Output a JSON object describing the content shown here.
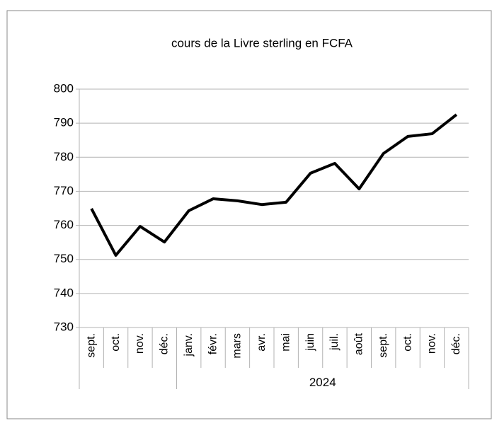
{
  "chart_data": {
    "type": "line",
    "title": "cours de la Livre sterling en FCFA",
    "categories": [
      "sept.",
      "oct.",
      "nov.",
      "déc.",
      "janv.",
      "févr.",
      "mars",
      "avr.",
      "mai",
      "juin",
      "juil.",
      "août",
      "sept.",
      "oct.",
      "nov.",
      "déc."
    ],
    "category_groups": [
      null,
      null,
      null,
      null,
      "2024",
      "2024",
      "2024",
      "2024",
      "2024",
      "2024",
      "2024",
      "2024",
      "2024",
      "2024",
      "2024",
      "2024"
    ],
    "series": [
      {
        "name": "cours",
        "color": "#000000",
        "values": [
          764.9,
          751.2,
          759.7,
          755.1,
          764.3,
          767.8,
          767.2,
          766.1,
          766.8,
          775.3,
          778.2,
          770.7,
          781.1,
          786.1,
          786.9,
          792.5
        ]
      }
    ],
    "ylim": [
      730,
      800
    ],
    "yticks": [
      730,
      740,
      750,
      760,
      770,
      780,
      790,
      800
    ],
    "grid": true
  }
}
